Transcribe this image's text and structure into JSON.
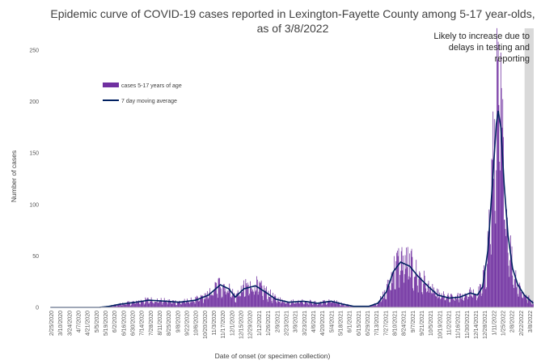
{
  "chart_data": {
    "type": "bar",
    "title_lines": [
      "Epidemic curve of COVID-19 cases reported in Lexington-Fayette County among 5-17 year-olds,",
      "as of 3/8/2022"
    ],
    "xlabel": "Date of onset (or specimen collection)",
    "ylabel": "Number of cases",
    "ylim": [
      0,
      250
    ],
    "yticks": [
      0,
      50,
      100,
      150,
      200,
      250
    ],
    "grid": false,
    "legend_position": "top-left",
    "start_date": "2020-02-25",
    "end_date": "2022-03-08",
    "series": [
      {
        "name": "cases 5-17 years of age",
        "kind": "bar",
        "color": "#7030A0"
      },
      {
        "name": "7 day moving average",
        "kind": "line",
        "color": "#002060"
      }
    ],
    "x_tick_labels": [
      "2/25/2020",
      "3/10/2020",
      "3/24/2020",
      "4/7/2020",
      "4/21/2020",
      "5/5/2020",
      "5/19/2020",
      "6/2/2020",
      "6/16/2020",
      "6/30/2020",
      "7/14/2020",
      "7/28/2020",
      "8/11/2020",
      "8/25/2020",
      "9/8/2020",
      "9/22/2020",
      "10/6/2020",
      "10/20/2020",
      "11/3/2020",
      "11/17/2020",
      "12/1/2020",
      "12/15/2020",
      "12/29/2020",
      "1/12/2021",
      "1/26/2021",
      "2/9/2021",
      "2/23/2021",
      "3/9/2021",
      "3/23/2021",
      "4/6/2021",
      "4/20/2021",
      "5/4/2021",
      "5/18/2021",
      "6/1/2021",
      "6/15/2021",
      "6/29/2021",
      "7/13/2021",
      "7/27/2021",
      "8/10/2021",
      "8/24/2021",
      "9/7/2021",
      "9/21/2021",
      "10/5/2021",
      "10/19/2021",
      "11/2/2021",
      "11/16/2021",
      "11/30/2021",
      "12/14/2021",
      "12/28/2021",
      "1/11/2022",
      "1/25/2022",
      "2/8/2022",
      "2/22/2022",
      "3/8/2022"
    ],
    "moving_average_keypoints": [
      {
        "date": "2020-02-25",
        "value": 0
      },
      {
        "date": "2020-05-10",
        "value": 0
      },
      {
        "date": "2020-05-25",
        "value": 1
      },
      {
        "date": "2020-06-10",
        "value": 3
      },
      {
        "date": "2020-07-05",
        "value": 5
      },
      {
        "date": "2020-07-25",
        "value": 7
      },
      {
        "date": "2020-08-20",
        "value": 6
      },
      {
        "date": "2020-09-10",
        "value": 5
      },
      {
        "date": "2020-10-05",
        "value": 7
      },
      {
        "date": "2020-10-25",
        "value": 12
      },
      {
        "date": "2020-11-12",
        "value": 22
      },
      {
        "date": "2020-11-25",
        "value": 18
      },
      {
        "date": "2020-12-05",
        "value": 10
      },
      {
        "date": "2020-12-18",
        "value": 18
      },
      {
        "date": "2021-01-05",
        "value": 21
      },
      {
        "date": "2021-01-20",
        "value": 15
      },
      {
        "date": "2021-02-05",
        "value": 8
      },
      {
        "date": "2021-02-25",
        "value": 5
      },
      {
        "date": "2021-03-20",
        "value": 6
      },
      {
        "date": "2021-04-10",
        "value": 4
      },
      {
        "date": "2021-05-01",
        "value": 6
      },
      {
        "date": "2021-05-20",
        "value": 3
      },
      {
        "date": "2021-06-05",
        "value": 1
      },
      {
        "date": "2021-06-28",
        "value": 1
      },
      {
        "date": "2021-07-12",
        "value": 4
      },
      {
        "date": "2021-07-25",
        "value": 15
      },
      {
        "date": "2021-08-05",
        "value": 35
      },
      {
        "date": "2021-08-16",
        "value": 44
      },
      {
        "date": "2021-08-30",
        "value": 40
      },
      {
        "date": "2021-09-12",
        "value": 30
      },
      {
        "date": "2021-09-28",
        "value": 20
      },
      {
        "date": "2021-10-12",
        "value": 12
      },
      {
        "date": "2021-10-30",
        "value": 9
      },
      {
        "date": "2021-11-15",
        "value": 10
      },
      {
        "date": "2021-12-01",
        "value": 14
      },
      {
        "date": "2021-12-12",
        "value": 12
      },
      {
        "date": "2021-12-20",
        "value": 20
      },
      {
        "date": "2021-12-28",
        "value": 55
      },
      {
        "date": "2022-01-04",
        "value": 120
      },
      {
        "date": "2022-01-10",
        "value": 178
      },
      {
        "date": "2022-01-13",
        "value": 191
      },
      {
        "date": "2022-01-17",
        "value": 175
      },
      {
        "date": "2022-01-22",
        "value": 120
      },
      {
        "date": "2022-01-28",
        "value": 70
      },
      {
        "date": "2022-02-04",
        "value": 38
      },
      {
        "date": "2022-02-12",
        "value": 22
      },
      {
        "date": "2022-02-22",
        "value": 12
      },
      {
        "date": "2022-03-08",
        "value": 4
      }
    ],
    "annotation": {
      "lines": [
        "Likely to increase due to",
        "delays in testing and",
        "reporting"
      ],
      "shaded_from": "2022-02-23",
      "shaded_to": "2022-03-08",
      "shade_color": "#D9D9D9"
    }
  }
}
